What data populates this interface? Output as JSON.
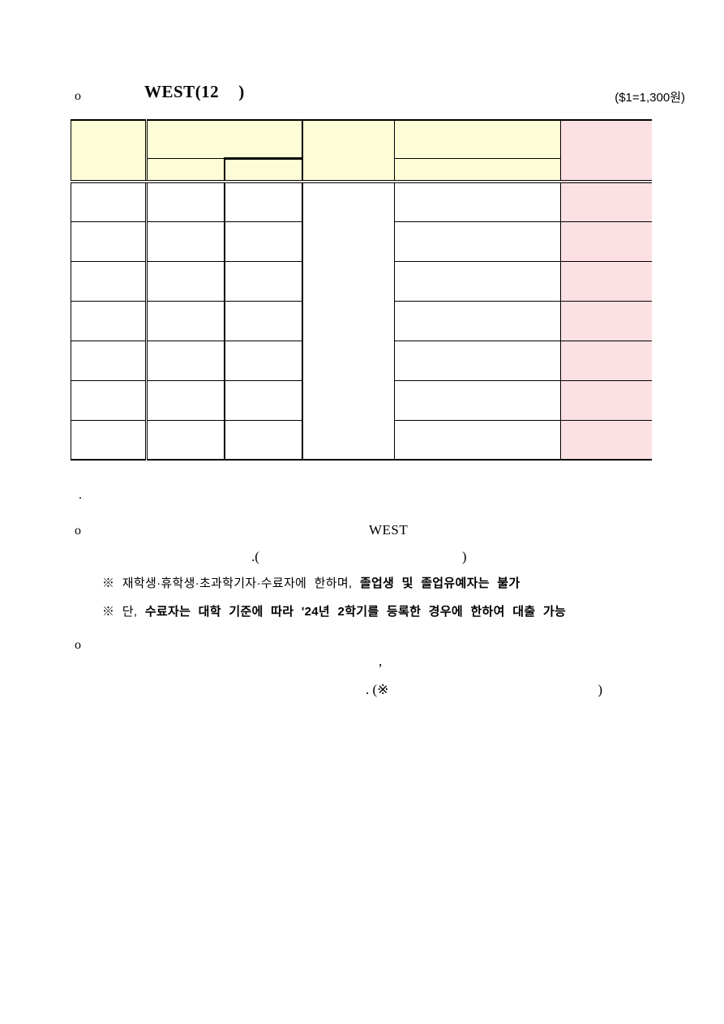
{
  "title": {
    "bullet": "o",
    "text": "WEST(12",
    "close_paren": ")",
    "exchange_rate": "($1=1,300원)"
  },
  "table": {
    "rows": 7,
    "header_fill": "#FCFCD6",
    "highlight_fill": "#FCE0E4",
    "cells_empty": true
  },
  "body": {
    "period": ".",
    "bullet2": "o",
    "west": "WEST",
    "paren_open": ".(",
    "paren_close": ")",
    "note1_prefix": "※ 재학생·휴학생·초과학기자·수료자에 한하며, ",
    "note1_bold": "졸업생 및 졸업유예자는 불가",
    "note2_prefix": "※ 단, ",
    "note2_bold": "수료자는 대학 기준에 따라 '24년 2학기를 등록한 경우에 한하여 대출 가능",
    "bullet3": "o",
    "comma": ",",
    "final_open": ". (※",
    "final_close": ")"
  }
}
